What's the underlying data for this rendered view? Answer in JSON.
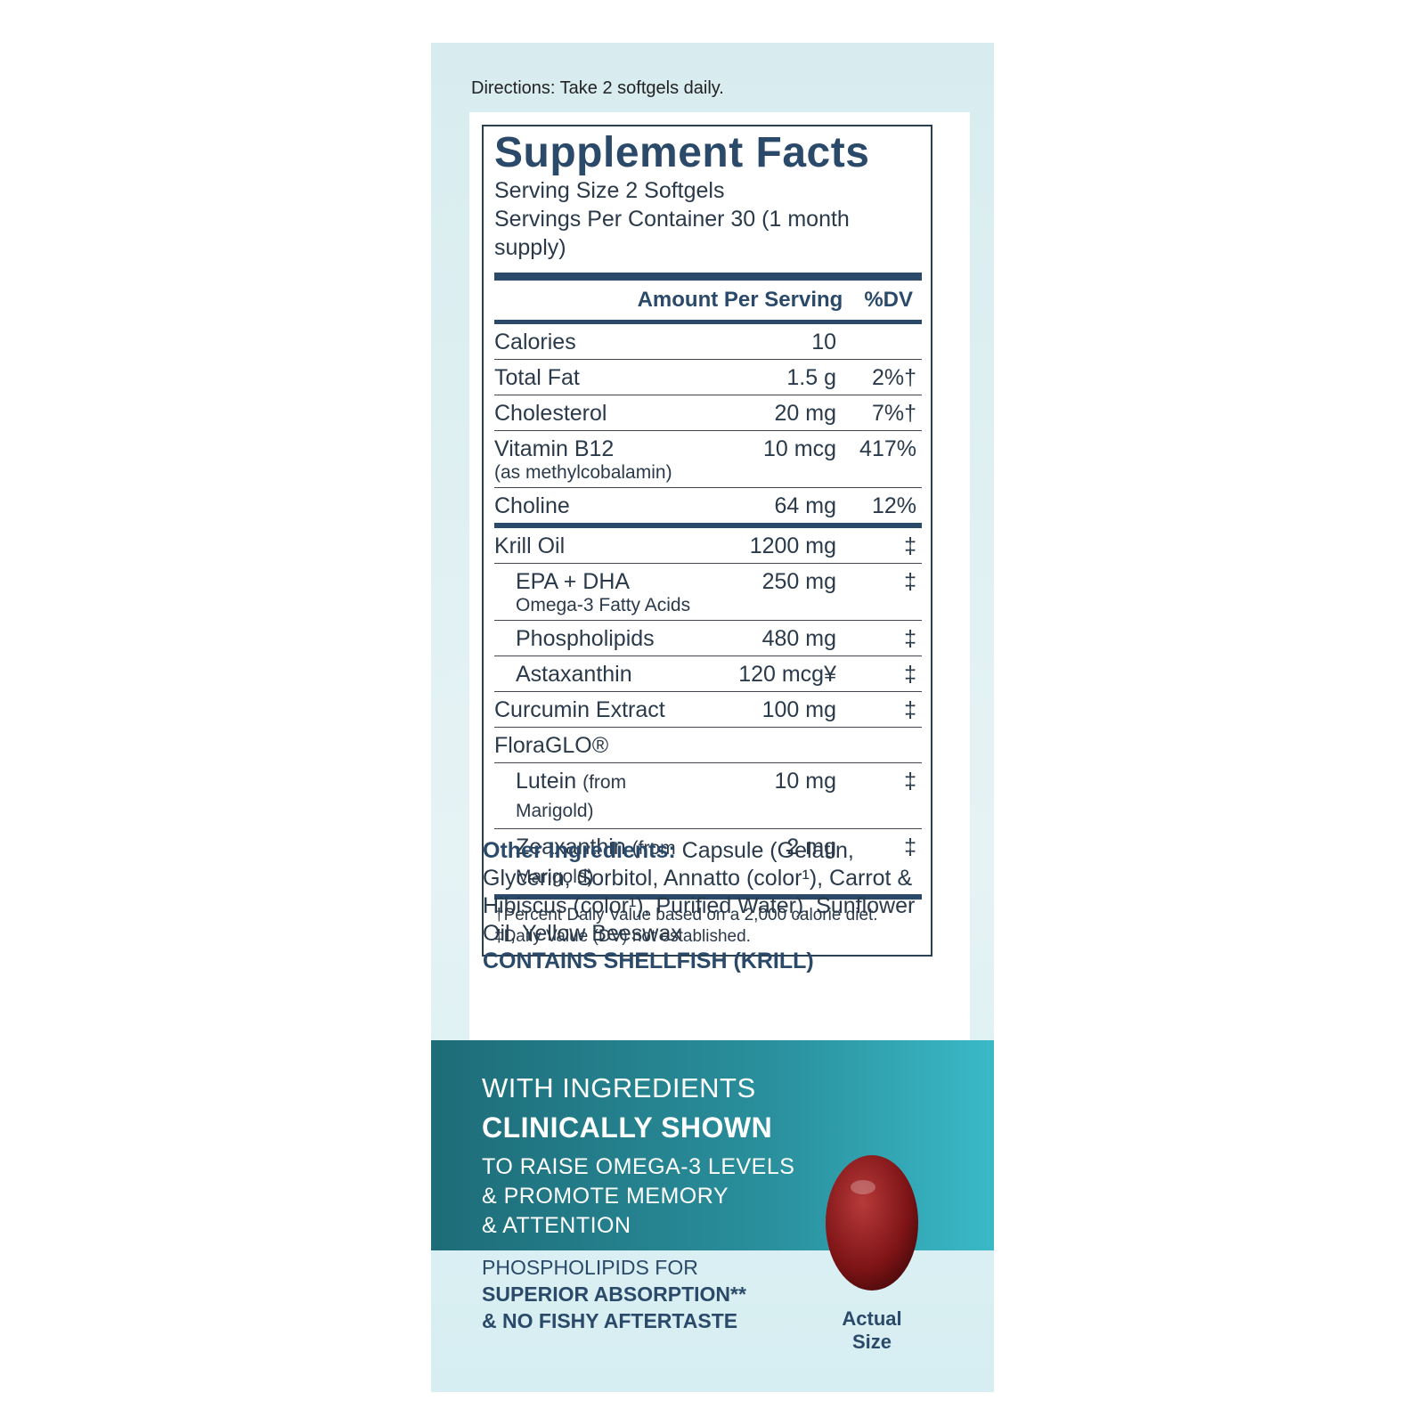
{
  "directions": "Directions: Take 2 softgels daily.",
  "facts": {
    "title": "Supplement Facts",
    "serving_size": "Serving Size 2 Softgels",
    "servings_per_container": "Servings Per Container 30 (1 month supply)",
    "header": [
      "Amount Per Serving",
      "%DV"
    ],
    "rows": [
      {
        "name": "Calories",
        "amount": "10"
      },
      {
        "name": "Total Fat",
        "amount": "1.5 g",
        "dv": "2%†"
      },
      {
        "name": "Cholesterol",
        "amount": "20 mg",
        "dv": "7%†"
      },
      {
        "name": "Vitamin B12",
        "note": "(as methylcobalamin)",
        "amount": "10 mcg",
        "dv": "417%"
      },
      {
        "name": "Choline",
        "amount": "64 mg",
        "dv": "12%"
      },
      {
        "name": "Krill Oil",
        "amount": "1200 mg",
        "dv": "‡"
      },
      {
        "name": "EPA + DHA",
        "note": "Omega-3 Fatty Acids",
        "amount": "250 mg",
        "dv": "‡"
      },
      {
        "name": "Phospholipids",
        "amount": "480 mg",
        "dv": "‡"
      },
      {
        "name": "Astaxanthin",
        "amount": "120 mcg¥",
        "dv": "‡"
      },
      {
        "name": "Curcumin Extract",
        "amount": "100 mg",
        "dv": "‡"
      },
      {
        "name": "FloraGLO®"
      },
      {
        "name": "Lutein",
        "qualifier": "(from Marigold)",
        "amount": "10 mg",
        "dv": "‡"
      },
      {
        "name": "Zeaxanthin",
        "qualifier": "(from Marigold)",
        "amount": "2 mg",
        "dv": "‡"
      }
    ],
    "footnotes": [
      "†Percent Daily Value based on a 2,000 calorie diet.",
      "‡Daily Value (DV) not established."
    ]
  },
  "other_ingredients": {
    "label": "Other Ingredients:",
    "text": "Capsule (Gelatin, Glycerin, Sorbitol, Annatto (color¹), Carrot & Hibiscus (color¹), Purified Water), Sunflower Oil, Yellow Beeswax",
    "allergen": "CONTAINS SHELLFISH (KRILL)"
  },
  "banner": [
    "WITH INGREDIENTS",
    "CLINICALLY SHOWN",
    "TO RAISE OMEGA-3 LEVELS",
    "& PROMOTE MEMORY",
    "& ATTENTION"
  ],
  "benefits": [
    "PHOSPHOLIPIDS FOR",
    "SUPERIOR ABSORPTION**",
    "& NO FISHY AFTERTASTE"
  ],
  "capsule_caption": "Actual Size"
}
